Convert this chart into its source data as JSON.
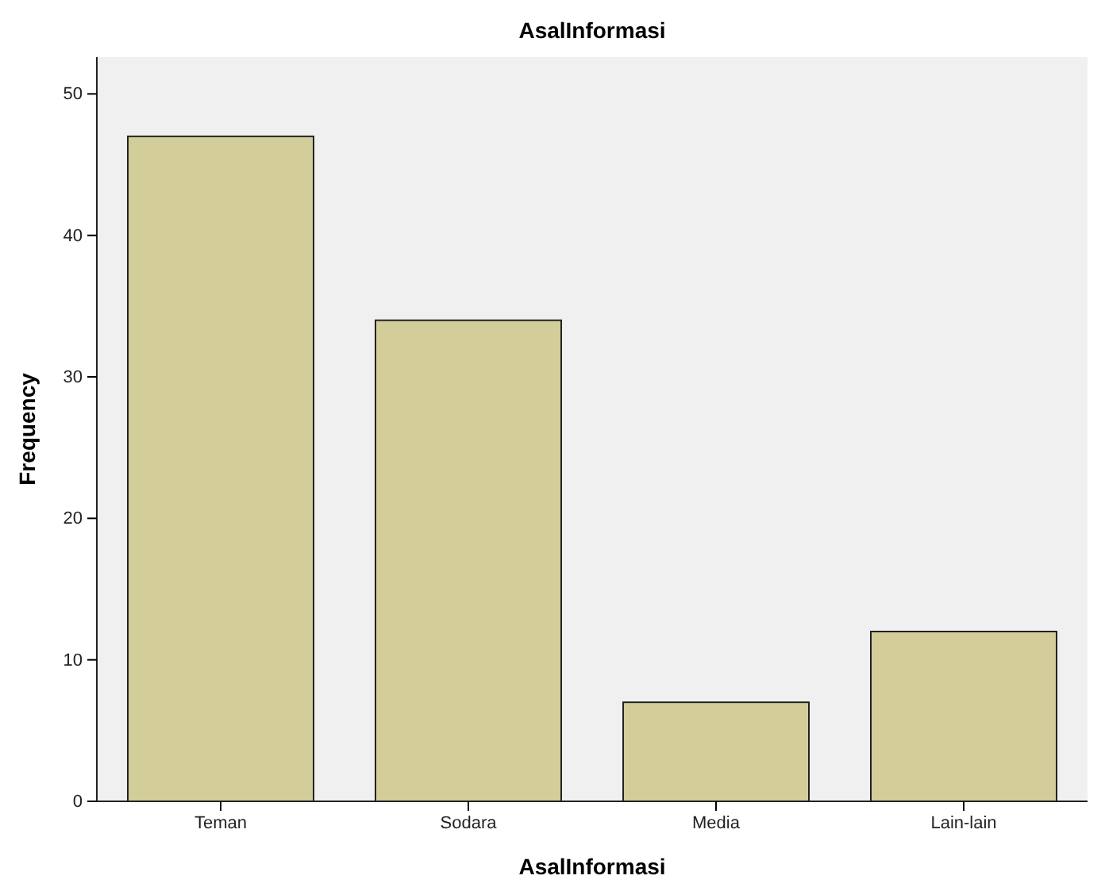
{
  "chart_data": {
    "type": "bar",
    "title": "AsalInformasi",
    "xlabel": "AsalInformasi",
    "ylabel": "Frequency",
    "categories": [
      "Teman",
      "Sodara",
      "Media",
      "Lain-lain"
    ],
    "values": [
      47,
      34,
      7,
      12
    ],
    "color": "#d3cd9a",
    "ylim": [
      0,
      52.6
    ],
    "yticks": [
      0,
      10,
      20,
      30,
      40,
      50
    ],
    "grid": false
  }
}
